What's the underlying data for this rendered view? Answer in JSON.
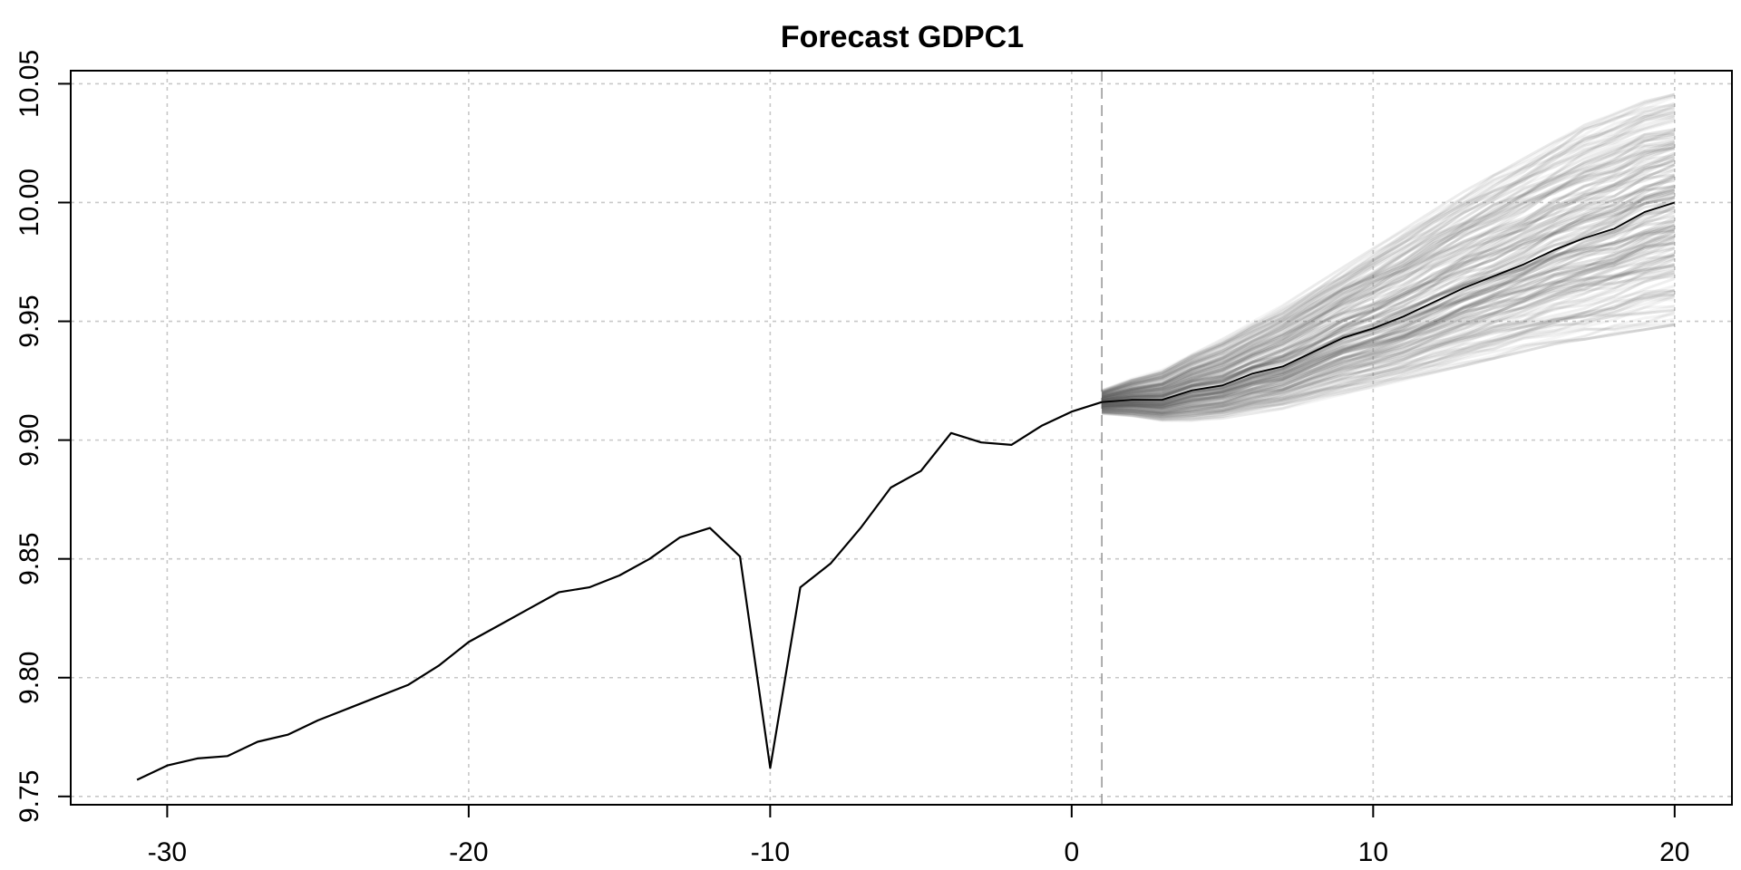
{
  "chart_data": {
    "type": "line",
    "title": "Forecast GDPC1",
    "xlabel": "",
    "ylabel": "",
    "xlim": [
      -33.2,
      21.9
    ],
    "ylim": [
      9.7465,
      10.0555
    ],
    "x_ticks": [
      -30,
      -20,
      -10,
      0,
      10,
      20
    ],
    "x_tick_labels": [
      "-30",
      "-20",
      "-10",
      "0",
      "10",
      "20"
    ],
    "y_ticks": [
      9.75,
      9.8,
      9.85,
      9.9,
      9.95,
      10.0,
      10.05
    ],
    "y_tick_labels": [
      "9.75",
      "9.80",
      "9.85",
      "9.90",
      "9.95",
      "10.00",
      "10.05"
    ],
    "grid": true,
    "forecast_origin": 1,
    "colors": {
      "history": "#000000",
      "forecast_mean": "#000000",
      "paths": "#5a5a5a",
      "grid": "#c8c8c8",
      "origin_line": "#999999"
    },
    "series": [
      {
        "role": "history",
        "x": [
          -31,
          -30,
          -29,
          -28,
          -27,
          -26,
          -25,
          -24,
          -23,
          -22,
          -21,
          -20,
          -19,
          -18,
          -17,
          -16,
          -15,
          -14,
          -13,
          -12,
          -11,
          -10,
          -9,
          -8,
          -7,
          -6,
          -5,
          -4,
          -3,
          -2,
          -1,
          0,
          1
        ],
        "values": [
          9.757,
          9.763,
          9.766,
          9.767,
          9.773,
          9.776,
          9.782,
          9.787,
          9.792,
          9.797,
          9.805,
          9.815,
          9.822,
          9.829,
          9.836,
          9.838,
          9.843,
          9.85,
          9.859,
          9.863,
          9.851,
          9.762,
          9.838,
          9.848,
          9.863,
          9.88,
          9.887,
          9.903,
          9.899,
          9.898,
          9.906,
          9.912,
          9.916
        ]
      },
      {
        "role": "forecast_mean",
        "x": [
          1,
          2,
          3,
          4,
          5,
          6,
          7,
          8,
          9,
          10,
          11,
          12,
          13,
          14,
          15,
          16,
          17,
          18,
          19,
          20
        ],
        "values": [
          9.916,
          9.917,
          9.917,
          9.921,
          9.923,
          9.928,
          9.931,
          9.937,
          9.943,
          9.947,
          9.952,
          9.958,
          9.964,
          9.969,
          9.974,
          9.98,
          9.985,
          9.989,
          9.996,
          10.0
        ]
      },
      {
        "role": "forecast_band_upper",
        "x": [
          1,
          2,
          3,
          4,
          5,
          6,
          7,
          8,
          9,
          10,
          11,
          12,
          13,
          14,
          15,
          16,
          17,
          18,
          19,
          20
        ],
        "values": [
          9.921,
          9.926,
          9.93,
          9.937,
          9.943,
          9.95,
          9.957,
          9.965,
          9.973,
          9.981,
          9.989,
          9.997,
          10.005,
          10.012,
          10.019,
          10.026,
          10.033,
          10.038,
          10.043,
          10.046
        ]
      },
      {
        "role": "forecast_band_lower",
        "x": [
          1,
          2,
          3,
          4,
          5,
          6,
          7,
          8,
          9,
          10,
          11,
          12,
          13,
          14,
          15,
          16,
          17,
          18,
          19,
          20
        ],
        "values": [
          9.911,
          9.91,
          9.908,
          9.908,
          9.909,
          9.911,
          9.913,
          9.916,
          9.919,
          9.922,
          9.925,
          9.928,
          9.931,
          9.934,
          9.937,
          9.94,
          9.942,
          9.944,
          9.946,
          9.948
        ]
      }
    ]
  }
}
